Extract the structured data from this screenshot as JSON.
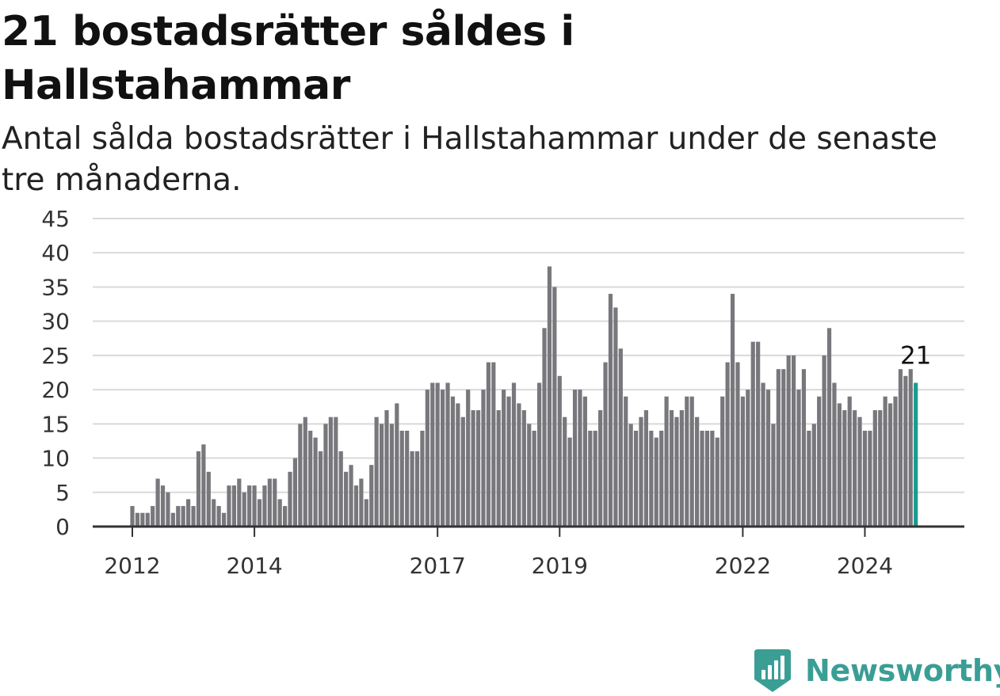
{
  "title": "21 bostadsrätter såldes i Hallstahammar",
  "subtitle": "Antal sålda bostadsrätter i Hallstahammar under de senaste tre månaderna.",
  "brand": {
    "name": "Newsworthy",
    "logo_icon": "newsworthy-chart-badge-icon",
    "color": "#3a9e95"
  },
  "colors": {
    "bar": "#78777c",
    "highlight": "#1a9b8f",
    "grid": "#d9d9d9",
    "axis": "#333333"
  },
  "chart_data": {
    "type": "bar",
    "title": "21 bostadsrätter såldes i Hallstahammar",
    "subtitle": "Antal sålda bostadsrätter i Hallstahammar under de senaste tre månaderna.",
    "xlabel": "",
    "ylabel": "",
    "ylim": [
      0,
      45
    ],
    "yticks": [
      0,
      5,
      10,
      15,
      20,
      25,
      30,
      35,
      40,
      45
    ],
    "grid": true,
    "start_date": "2012-01",
    "frequency": "monthly",
    "xtick_labels": [
      {
        "label": "2012",
        "date": "2012-01"
      },
      {
        "label": "2014",
        "date": "2014-01"
      },
      {
        "label": "2017",
        "date": "2017-01"
      },
      {
        "label": "2019",
        "date": "2019-01"
      },
      {
        "label": "2022",
        "date": "2022-01"
      },
      {
        "label": "2024",
        "date": "2024-01"
      }
    ],
    "values": [
      3,
      2,
      2,
      2,
      3,
      7,
      6,
      5,
      2,
      3,
      3,
      4,
      3,
      11,
      12,
      8,
      4,
      3,
      2,
      6,
      6,
      7,
      5,
      6,
      6,
      4,
      6,
      7,
      7,
      4,
      3,
      8,
      10,
      15,
      16,
      14,
      13,
      11,
      15,
      16,
      16,
      11,
      8,
      9,
      6,
      7,
      4,
      9,
      16,
      15,
      17,
      15,
      18,
      14,
      14,
      11,
      11,
      14,
      20,
      21,
      21,
      20,
      21,
      19,
      18,
      16,
      20,
      17,
      17,
      20,
      24,
      24,
      17,
      20,
      19,
      21,
      18,
      17,
      15,
      14,
      21,
      29,
      38,
      35,
      22,
      16,
      13,
      20,
      20,
      19,
      14,
      14,
      17,
      24,
      34,
      32,
      26,
      19,
      15,
      14,
      16,
      17,
      14,
      13,
      14,
      19,
      17,
      16,
      17,
      19,
      19,
      16,
      14,
      14,
      14,
      13,
      19,
      24,
      34,
      24,
      19,
      20,
      27,
      27,
      21,
      20,
      15,
      23,
      23,
      25,
      25,
      20,
      23,
      14,
      15,
      19,
      25,
      29,
      21,
      18,
      17,
      19,
      17,
      16,
      14,
      14,
      17,
      17,
      19,
      18,
      19,
      23,
      22,
      23,
      21
    ],
    "highlight_last": true,
    "annotations": [
      {
        "text": "21",
        "target": "last_bar"
      }
    ]
  }
}
